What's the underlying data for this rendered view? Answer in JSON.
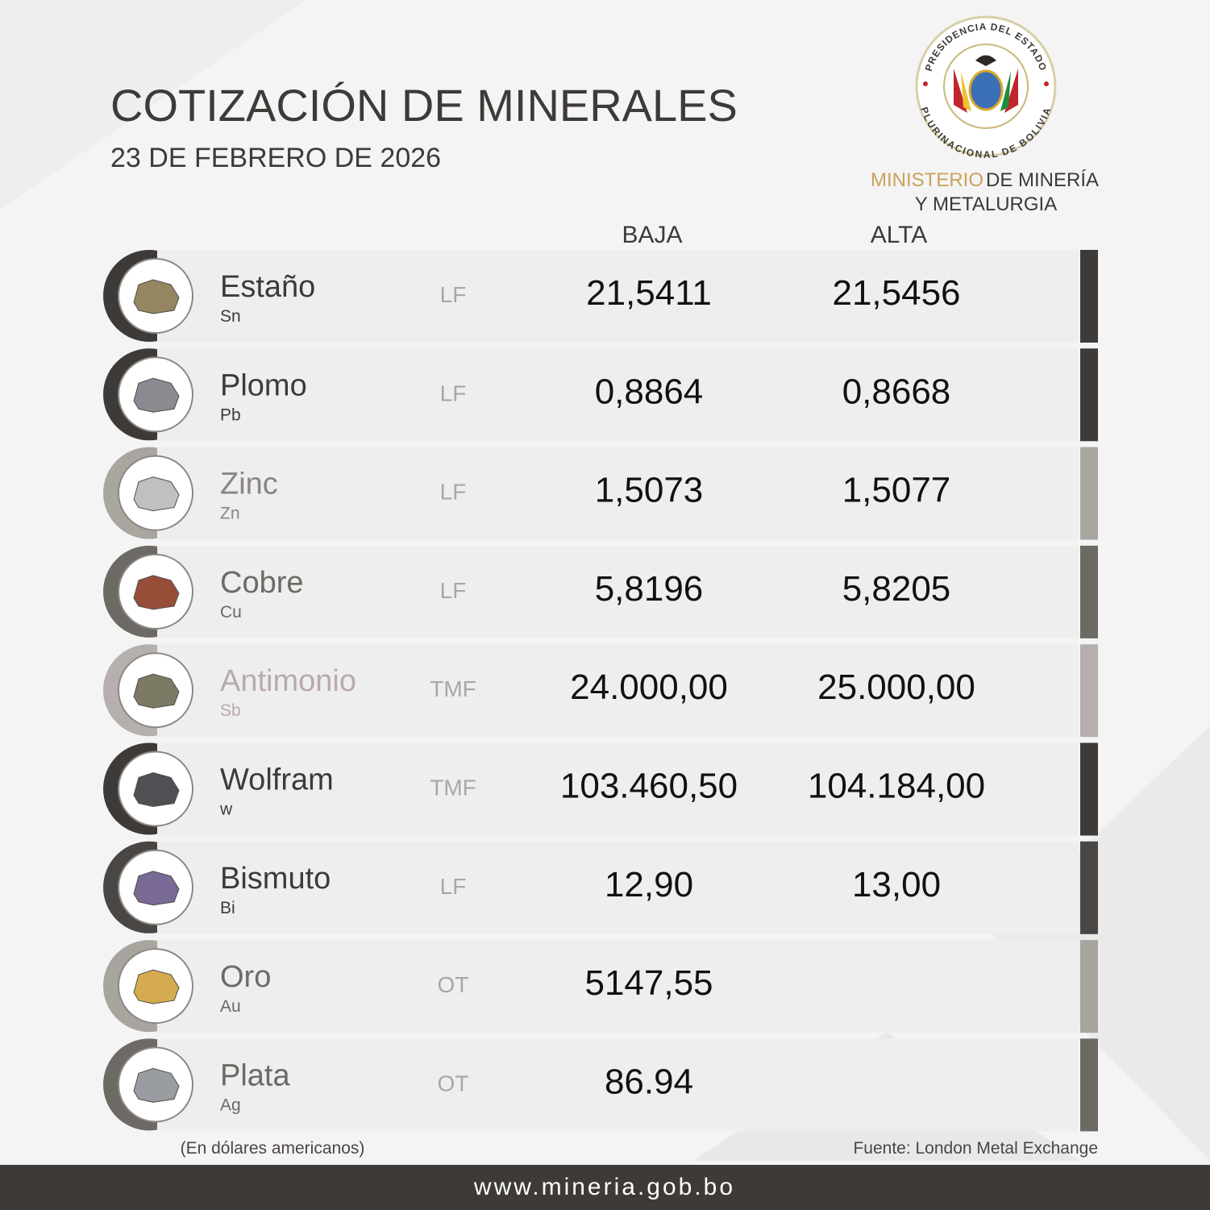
{
  "header": {
    "title": "COTIZACIÓN DE MINERALES",
    "date": "23 DE FEBRERO DE 2026"
  },
  "logo": {
    "ring_top": "PRESIDENCIA DEL ESTADO",
    "ring_bottom": "PLURINACIONAL DE BOLIVIA",
    "ministry_a": "MINISTERIO",
    "ministry_b": "DE MINERÍA",
    "ministry_c": "Y METALURGIA"
  },
  "table": {
    "columns": [
      "BAJA",
      "ALTA"
    ],
    "rows": [
      {
        "name": "Estaño",
        "symbol": "Sn",
        "unit": "LF",
        "low": "21,5411",
        "high": "21,5456",
        "color": "#3d3a37"
      },
      {
        "name": "Plomo",
        "symbol": "Pb",
        "unit": "LF",
        "low": "0,8864",
        "high": "0,8668",
        "color": "#3d3a37"
      },
      {
        "name": "Zinc",
        "symbol": "Zn",
        "unit": "LF",
        "low": "1,5073",
        "high": "1,5077",
        "color": "#a9a6a0"
      },
      {
        "name": "Cobre",
        "symbol": "Cu",
        "unit": "LF",
        "low": "5,8196",
        "high": "5,8205",
        "color": "#6d6964"
      },
      {
        "name": "Antimonio",
        "symbol": "Sb",
        "unit": "TMF",
        "low": "24.000,00",
        "high": "25.000,00",
        "color": "#b5b0ad"
      },
      {
        "name": "Wolfram",
        "symbol": "w",
        "unit": "TMF",
        "low": "103.460,50",
        "high": "104.184,00",
        "color": "#3d3a37"
      },
      {
        "name": "Bismuto",
        "symbol": "Bi",
        "unit": "LF",
        "low": "12,90",
        "high": "13,00",
        "color": "#4a4643"
      },
      {
        "name": "Oro",
        "symbol": "Au",
        "unit": "OT",
        "low": "5147,55",
        "color": "#a8a49e"
      },
      {
        "name": "Plata",
        "symbol": "Ag",
        "unit": "OT",
        "low": "86.94",
        "color": "#6d6964"
      }
    ]
  },
  "footer": {
    "note": "(En dólares americanos)",
    "source": "Fuente: London Metal Exchange",
    "url": "www.mineria.gob.bo"
  }
}
